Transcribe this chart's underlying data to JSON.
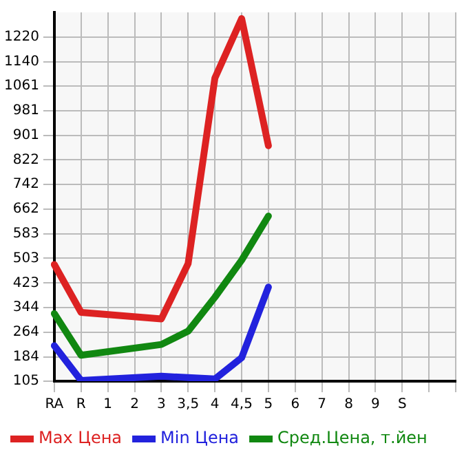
{
  "chart_data": {
    "type": "line",
    "categories": [
      "RA",
      "R",
      "1",
      "2",
      "3",
      "3,5",
      "4",
      "4,5",
      "5",
      "6",
      "7",
      "8",
      "9",
      "S",
      null,
      null
    ],
    "series": [
      {
        "name": "Max Цена",
        "color": "#dd2222",
        "values": [
          483,
          328,
          null,
          null,
          307,
          486,
          1087,
          1280,
          868,
          null,
          null,
          null,
          null,
          null,
          null,
          null
        ]
      },
      {
        "name": "Min Цена",
        "color": "#2222dd",
        "values": [
          220,
          107,
          null,
          null,
          121,
          null,
          112,
          181,
          410,
          null,
          null,
          null,
          null,
          null,
          null,
          null
        ]
      },
      {
        "name": "Сред.Цена, т.йен",
        "color": "#118811",
        "values": [
          324,
          189,
          null,
          null,
          224,
          267,
          377,
          497,
          640,
          null,
          null,
          null,
          null,
          null,
          null,
          null
        ]
      }
    ],
    "ylim": [
      105,
      1300
    ],
    "yticks": [
      105,
      184,
      264,
      344,
      423,
      503,
      583,
      662,
      742,
      822,
      901,
      981,
      1061,
      1140,
      1220
    ],
    "grid": true,
    "legend": "bottom",
    "marker": "none",
    "line_style": "solid"
  }
}
